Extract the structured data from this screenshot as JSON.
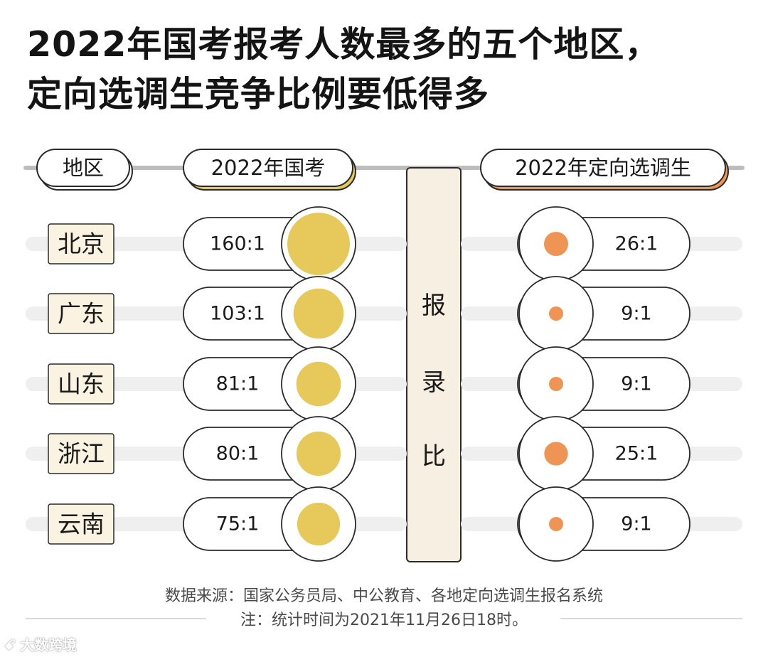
{
  "title": {
    "line1": "2022年国考报考人数最多的五个地区，",
    "line2": "定向选调生竞争比例要低得多"
  },
  "chart_data": {
    "type": "bubble",
    "headers": {
      "region": "地区",
      "left": "2022年国考",
      "right": "2022年定向选调生"
    },
    "center_label": [
      "报",
      "录",
      "比"
    ],
    "categories": [
      "北京",
      "广东",
      "山东",
      "浙江",
      "云南"
    ],
    "series": [
      {
        "name": "2022年国考",
        "values": [
          160,
          103,
          81,
          80,
          75
        ],
        "labels": [
          "160:1",
          "103:1",
          "81:1",
          "80:1",
          "75:1"
        ],
        "color": "#e6c95a"
      },
      {
        "name": "2022年定向选调生",
        "values": [
          26,
          9,
          9,
          25,
          9
        ],
        "labels": [
          "26:1",
          "9:1",
          "9:1",
          "25:1",
          "9:1"
        ],
        "color": "#ee9555"
      }
    ]
  },
  "colors": {
    "label_fill": "#fbf3e2",
    "track": "#efefef",
    "outline": "#2a2a2a",
    "column_fill": "#f7efe1",
    "left_accent": "#e6c95a",
    "right_accent": "#ee9555"
  },
  "footer": {
    "source": "数据来源：国家公务员局、中公教育、各地定向选调生报名系统",
    "note": "注：统计时间为2021年11月26日18时。"
  },
  "watermark": {
    "icon": "logo-mark",
    "mark": "ꗃ",
    "text": "大数跨境"
  }
}
